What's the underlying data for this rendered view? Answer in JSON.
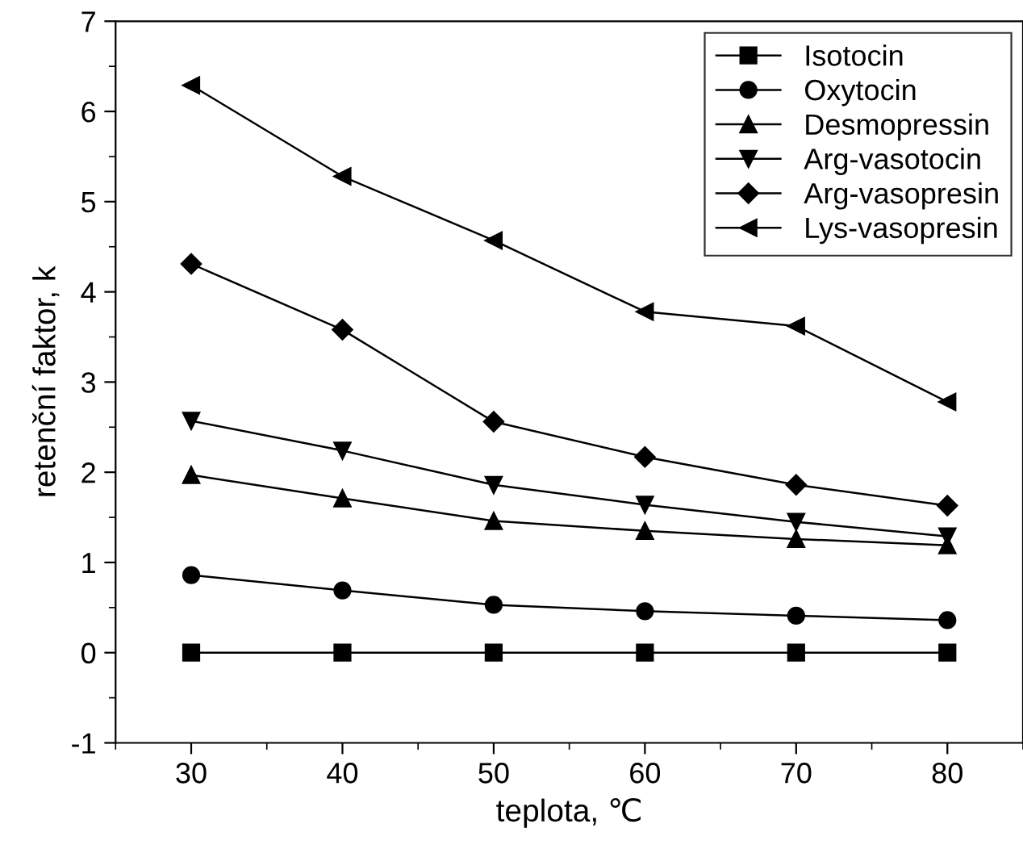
{
  "chart_data": {
    "type": "line",
    "xlabel": "teplota, ℃",
    "ylabel": "retenční faktor, k",
    "x": [
      30,
      40,
      50,
      60,
      70,
      80
    ],
    "series": [
      {
        "name": "Isotocin",
        "color": "#000000",
        "marker": "square",
        "values": [
          0,
          0,
          0,
          0,
          0,
          0
        ]
      },
      {
        "name": "Oxytocin",
        "color": "#000000",
        "marker": "circle",
        "values": [
          0.86,
          0.69,
          0.53,
          0.46,
          0.41,
          0.36
        ]
      },
      {
        "name": "Desmopressin",
        "color": "#000000",
        "marker": "triangle",
        "values": [
          1.97,
          1.71,
          1.46,
          1.35,
          1.26,
          1.19
        ]
      },
      {
        "name": "Arg-vasotocin",
        "color": "#000000",
        "marker": "triangle_down",
        "values": [
          2.57,
          2.24,
          1.86,
          1.64,
          1.45,
          1.29
        ]
      },
      {
        "name": "Arg-vasopresin",
        "color": "#000000",
        "marker": "diamond",
        "values": [
          4.31,
          3.58,
          2.56,
          2.17,
          1.86,
          1.63
        ]
      },
      {
        "name": "Lys-vasopresin",
        "color": "#000000",
        "marker": "triangle_left",
        "values": [
          6.29,
          5.28,
          4.57,
          3.78,
          3.62,
          2.78
        ]
      }
    ],
    "xlim": [
      25,
      85
    ],
    "xticks": [
      30,
      40,
      50,
      60,
      70,
      80
    ],
    "ylim": [
      -1,
      7
    ],
    "yticks": [
      -1,
      0,
      1,
      2,
      3,
      4,
      5,
      6,
      7
    ],
    "grid": false,
    "legend": "top right"
  }
}
